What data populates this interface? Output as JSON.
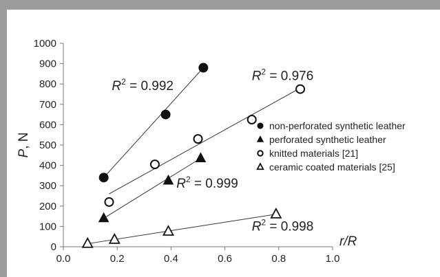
{
  "chart_data": {
    "type": "scatter",
    "title": "",
    "xlabel": "r/R",
    "ylabel": "P",
    "ylabel_unit": "N",
    "xlim": [
      0.0,
      1.0
    ],
    "ylim": [
      0,
      1000
    ],
    "xticks": [
      "0.0",
      "0.2",
      "0.4",
      "0.6",
      "0.8",
      "1.0"
    ],
    "yticks": [
      "0",
      "100",
      "200",
      "300",
      "400",
      "500",
      "600",
      "700",
      "800",
      "900",
      "1000"
    ],
    "grid": false,
    "legend_position": "right",
    "series": [
      {
        "name": "non-perforated synthetic leather",
        "marker": "filled-circle",
        "points": [
          [
            0.15,
            340
          ],
          [
            0.38,
            650
          ],
          [
            0.52,
            880
          ]
        ],
        "trend": [
          [
            0.15,
            340
          ],
          [
            0.52,
            880
          ]
        ],
        "r2_label": "R² = 0.992"
      },
      {
        "name": "perforated synthetic leather",
        "marker": "filled-triangle",
        "points": [
          [
            0.15,
            140
          ],
          [
            0.39,
            325
          ],
          [
            0.51,
            435
          ]
        ],
        "trend": [
          [
            0.15,
            140
          ],
          [
            0.51,
            435
          ]
        ],
        "r2_label": "R² = 0.999"
      },
      {
        "name": "knitted materials [21]",
        "marker": "open-circle",
        "points": [
          [
            0.17,
            220
          ],
          [
            0.34,
            405
          ],
          [
            0.5,
            530
          ],
          [
            0.7,
            625
          ],
          [
            0.88,
            775
          ]
        ],
        "trend": [
          [
            0.17,
            260
          ],
          [
            0.88,
            780
          ]
        ],
        "r2_label": "R² = 0.976"
      },
      {
        "name": "ceramic coated materials [25]",
        "marker": "open-triangle",
        "points": [
          [
            0.09,
            15
          ],
          [
            0.19,
            35
          ],
          [
            0.39,
            75
          ],
          [
            0.79,
            160
          ]
        ],
        "trend": [
          [
            0.09,
            15
          ],
          [
            0.79,
            160
          ]
        ],
        "r2_label": "R² = 0.998"
      }
    ]
  }
}
